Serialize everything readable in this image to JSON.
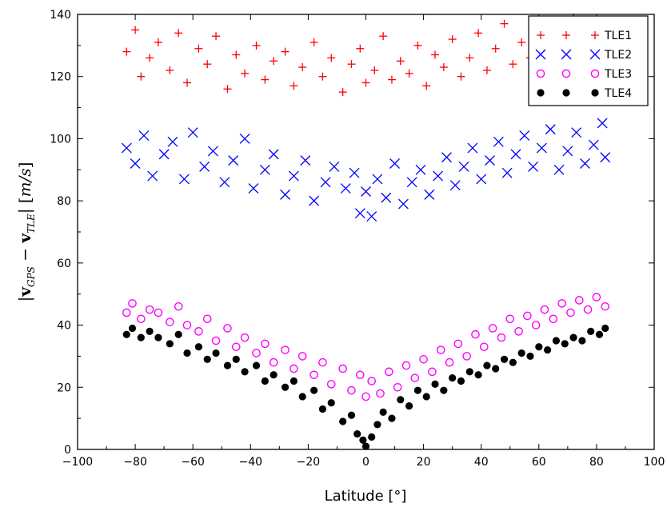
{
  "chart_data": {
    "type": "scatter",
    "xlabel": "Latitude [°]",
    "ylabel": "|v_GPS − v_TLE| [m/s]",
    "xlim": [
      -100,
      100
    ],
    "ylim": [
      0,
      140
    ],
    "xticks": [
      -100,
      -80,
      -60,
      -40,
      -20,
      0,
      20,
      40,
      60,
      80,
      100
    ],
    "yticks": [
      0,
      20,
      40,
      60,
      80,
      100,
      120,
      140
    ],
    "legend_position": "top-right",
    "grid": false,
    "series": [
      {
        "name": "TLE1",
        "marker": "plus",
        "color": "#ff0000",
        "points": [
          [
            -83,
            128
          ],
          [
            -80,
            135
          ],
          [
            -78,
            120
          ],
          [
            -75,
            126
          ],
          [
            -72,
            131
          ],
          [
            -68,
            122
          ],
          [
            -65,
            134
          ],
          [
            -62,
            118
          ],
          [
            -58,
            129
          ],
          [
            -55,
            124
          ],
          [
            -52,
            133
          ],
          [
            -48,
            116
          ],
          [
            -45,
            127
          ],
          [
            -42,
            121
          ],
          [
            -38,
            130
          ],
          [
            -35,
            119
          ],
          [
            -32,
            125
          ],
          [
            -28,
            128
          ],
          [
            -25,
            117
          ],
          [
            -22,
            123
          ],
          [
            -18,
            131
          ],
          [
            -15,
            120
          ],
          [
            -12,
            126
          ],
          [
            -8,
            115
          ],
          [
            -5,
            124
          ],
          [
            -2,
            129
          ],
          [
            0,
            118
          ],
          [
            3,
            122
          ],
          [
            6,
            133
          ],
          [
            9,
            119
          ],
          [
            12,
            125
          ],
          [
            15,
            121
          ],
          [
            18,
            130
          ],
          [
            21,
            117
          ],
          [
            24,
            127
          ],
          [
            27,
            123
          ],
          [
            30,
            132
          ],
          [
            33,
            120
          ],
          [
            36,
            126
          ],
          [
            39,
            134
          ],
          [
            42,
            122
          ],
          [
            45,
            129
          ],
          [
            48,
            137
          ],
          [
            51,
            124
          ],
          [
            54,
            131
          ],
          [
            57,
            126
          ],
          [
            60,
            138
          ],
          [
            63,
            129
          ],
          [
            66,
            133
          ],
          [
            69,
            127
          ],
          [
            72,
            139
          ],
          [
            75,
            131
          ],
          [
            78,
            135
          ],
          [
            81,
            128
          ],
          [
            83,
            137
          ]
        ]
      },
      {
        "name": "TLE2",
        "marker": "x",
        "color": "#0000ff",
        "points": [
          [
            -83,
            97
          ],
          [
            -80,
            92
          ],
          [
            -77,
            101
          ],
          [
            -74,
            88
          ],
          [
            -70,
            95
          ],
          [
            -67,
            99
          ],
          [
            -63,
            87
          ],
          [
            -60,
            102
          ],
          [
            -56,
            91
          ],
          [
            -53,
            96
          ],
          [
            -49,
            86
          ],
          [
            -46,
            93
          ],
          [
            -42,
            100
          ],
          [
            -39,
            84
          ],
          [
            -35,
            90
          ],
          [
            -32,
            95
          ],
          [
            -28,
            82
          ],
          [
            -25,
            88
          ],
          [
            -21,
            93
          ],
          [
            -18,
            80
          ],
          [
            -14,
            86
          ],
          [
            -11,
            91
          ],
          [
            -7,
            84
          ],
          [
            -4,
            89
          ],
          [
            -2,
            76
          ],
          [
            0,
            83
          ],
          [
            2,
            75
          ],
          [
            4,
            87
          ],
          [
            7,
            81
          ],
          [
            10,
            92
          ],
          [
            13,
            79
          ],
          [
            16,
            86
          ],
          [
            19,
            90
          ],
          [
            22,
            82
          ],
          [
            25,
            88
          ],
          [
            28,
            94
          ],
          [
            31,
            85
          ],
          [
            34,
            91
          ],
          [
            37,
            97
          ],
          [
            40,
            87
          ],
          [
            43,
            93
          ],
          [
            46,
            99
          ],
          [
            49,
            89
          ],
          [
            52,
            95
          ],
          [
            55,
            101
          ],
          [
            58,
            91
          ],
          [
            61,
            97
          ],
          [
            64,
            103
          ],
          [
            67,
            90
          ],
          [
            70,
            96
          ],
          [
            73,
            102
          ],
          [
            76,
            92
          ],
          [
            79,
            98
          ],
          [
            82,
            105
          ],
          [
            83,
            94
          ]
        ]
      },
      {
        "name": "TLE3",
        "marker": "circle-open",
        "color": "#ff00ff",
        "points": [
          [
            -83,
            44
          ],
          [
            -81,
            47
          ],
          [
            -78,
            42
          ],
          [
            -75,
            45
          ],
          [
            -72,
            44
          ],
          [
            -68,
            41
          ],
          [
            -65,
            46
          ],
          [
            -62,
            40
          ],
          [
            -58,
            38
          ],
          [
            -55,
            42
          ],
          [
            -52,
            35
          ],
          [
            -48,
            39
          ],
          [
            -45,
            33
          ],
          [
            -42,
            36
          ],
          [
            -38,
            31
          ],
          [
            -35,
            34
          ],
          [
            -32,
            28
          ],
          [
            -28,
            32
          ],
          [
            -25,
            26
          ],
          [
            -22,
            30
          ],
          [
            -18,
            24
          ],
          [
            -15,
            28
          ],
          [
            -12,
            21
          ],
          [
            -8,
            26
          ],
          [
            -5,
            19
          ],
          [
            -2,
            24
          ],
          [
            0,
            17
          ],
          [
            2,
            22
          ],
          [
            5,
            18
          ],
          [
            8,
            25
          ],
          [
            11,
            20
          ],
          [
            14,
            27
          ],
          [
            17,
            23
          ],
          [
            20,
            29
          ],
          [
            23,
            25
          ],
          [
            26,
            32
          ],
          [
            29,
            28
          ],
          [
            32,
            34
          ],
          [
            35,
            30
          ],
          [
            38,
            37
          ],
          [
            41,
            33
          ],
          [
            44,
            39
          ],
          [
            47,
            36
          ],
          [
            50,
            42
          ],
          [
            53,
            38
          ],
          [
            56,
            43
          ],
          [
            59,
            40
          ],
          [
            62,
            45
          ],
          [
            65,
            42
          ],
          [
            68,
            47
          ],
          [
            71,
            44
          ],
          [
            74,
            48
          ],
          [
            77,
            45
          ],
          [
            80,
            49
          ],
          [
            83,
            46
          ]
        ]
      },
      {
        "name": "TLE4",
        "marker": "circle-filled",
        "color": "#000000",
        "points": [
          [
            -83,
            37
          ],
          [
            -81,
            39
          ],
          [
            -78,
            36
          ],
          [
            -75,
            38
          ],
          [
            -72,
            36
          ],
          [
            -68,
            34
          ],
          [
            -65,
            37
          ],
          [
            -62,
            31
          ],
          [
            -58,
            33
          ],
          [
            -55,
            29
          ],
          [
            -52,
            31
          ],
          [
            -48,
            27
          ],
          [
            -45,
            29
          ],
          [
            -42,
            25
          ],
          [
            -38,
            27
          ],
          [
            -35,
            22
          ],
          [
            -32,
            24
          ],
          [
            -28,
            20
          ],
          [
            -25,
            22
          ],
          [
            -22,
            17
          ],
          [
            -18,
            19
          ],
          [
            -15,
            13
          ],
          [
            -12,
            15
          ],
          [
            -8,
            9
          ],
          [
            -5,
            11
          ],
          [
            -3,
            5
          ],
          [
            -1,
            3
          ],
          [
            0,
            1
          ],
          [
            2,
            4
          ],
          [
            4,
            8
          ],
          [
            6,
            12
          ],
          [
            9,
            10
          ],
          [
            12,
            16
          ],
          [
            15,
            14
          ],
          [
            18,
            19
          ],
          [
            21,
            17
          ],
          [
            24,
            21
          ],
          [
            27,
            19
          ],
          [
            30,
            23
          ],
          [
            33,
            22
          ],
          [
            36,
            25
          ],
          [
            39,
            24
          ],
          [
            42,
            27
          ],
          [
            45,
            26
          ],
          [
            48,
            29
          ],
          [
            51,
            28
          ],
          [
            54,
            31
          ],
          [
            57,
            30
          ],
          [
            60,
            33
          ],
          [
            63,
            32
          ],
          [
            66,
            35
          ],
          [
            69,
            34
          ],
          [
            72,
            36
          ],
          [
            75,
            35
          ],
          [
            78,
            38
          ],
          [
            81,
            37
          ],
          [
            83,
            39
          ]
        ]
      }
    ]
  }
}
